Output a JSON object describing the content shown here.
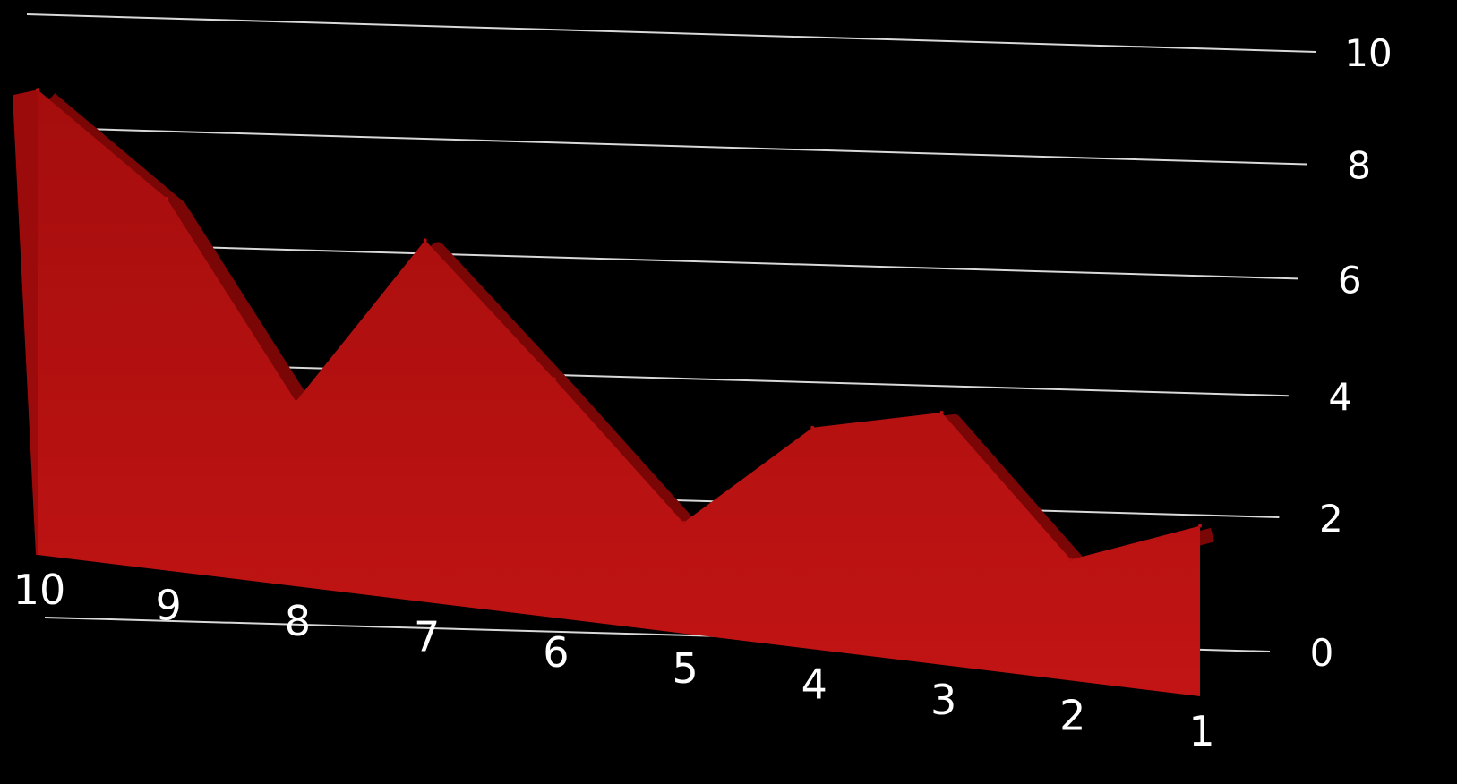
{
  "chart_data": {
    "type": "area",
    "title": "",
    "xlabel": "",
    "ylabel": "",
    "categories": [
      "10",
      "9",
      "8",
      "7",
      "6",
      "5",
      "4",
      "3",
      "2",
      "1"
    ],
    "values": [
      9.2,
      7.6,
      3.9,
      7.9,
      5.4,
      2.6,
      5.4,
      6.4,
      3.2,
      4.7
    ],
    "ylim": [
      0,
      10
    ],
    "y_ticks": [
      "0",
      "2",
      "4",
      "6",
      "8",
      "10"
    ],
    "grid": true,
    "legend": "none",
    "colors": {
      "background": "#000000",
      "area": "#b31010",
      "area_top": "#7a0606",
      "gridline": "#d9d9d9",
      "label": "#ffffff"
    }
  }
}
